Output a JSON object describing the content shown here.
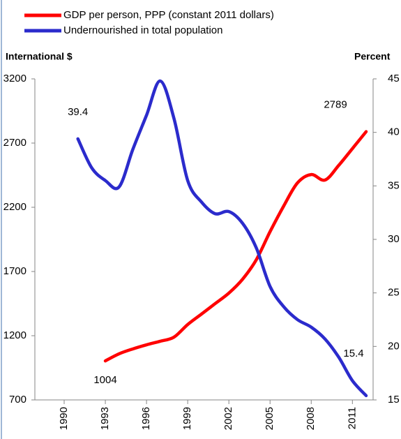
{
  "chart_data": {
    "type": "line",
    "y_label": "International $",
    "y2_label": "Percent",
    "xlim": [
      1990,
      2012
    ],
    "xticks": [
      1990,
      1993,
      1996,
      1999,
      2002,
      2005,
      2008,
      2011
    ],
    "ylim": [
      700,
      3200
    ],
    "yticks": [
      700,
      1200,
      1700,
      2200,
      2700,
      3200
    ],
    "y2lim": [
      15,
      45
    ],
    "y2ticks": [
      15,
      20,
      25,
      30,
      35,
      40,
      45
    ],
    "series": [
      {
        "name": "GDP per person, PPP (constant 2011 dollars)",
        "color": "#ff0000",
        "axis": "y",
        "x": [
          1993,
          1994,
          1995,
          1996,
          1997,
          1998,
          1999,
          2000,
          2001,
          2002,
          2003,
          2004,
          2005,
          2006,
          2007,
          2008,
          2009,
          2010,
          2011,
          2012
        ],
        "values": [
          1004,
          1059,
          1097,
          1129,
          1157,
          1189,
          1287,
          1368,
          1450,
          1532,
          1640,
          1792,
          2010,
          2211,
          2390,
          2455,
          2412,
          2526,
          2657,
          2789
        ],
        "value_labels": [
          "1004",
          null,
          null,
          null,
          null,
          null,
          null,
          null,
          null,
          null,
          null,
          null,
          null,
          null,
          null,
          null,
          null,
          null,
          null,
          "2789"
        ]
      },
      {
        "name": "Undernourished in total population",
        "color": "#2b2bcc",
        "axis": "y2",
        "x": [
          1991,
          1992,
          1993,
          1994,
          1995,
          1996,
          1997,
          1998,
          1999,
          2000,
          2001,
          2002,
          2003,
          2004,
          2005,
          2006,
          2007,
          2008,
          2009,
          2010,
          2011,
          2012
        ],
        "values": [
          39.4,
          36.7,
          35.5,
          34.9,
          38.4,
          41.6,
          44.8,
          41.3,
          35.5,
          33.5,
          32.4,
          32.6,
          31.5,
          29.2,
          25.6,
          23.7,
          22.5,
          21.8,
          20.7,
          19.0,
          16.8,
          15.4
        ],
        "value_labels": [
          "39.4",
          null,
          null,
          null,
          null,
          null,
          null,
          null,
          null,
          null,
          null,
          null,
          null,
          null,
          null,
          null,
          null,
          null,
          null,
          null,
          null,
          "15.4"
        ]
      }
    ]
  }
}
